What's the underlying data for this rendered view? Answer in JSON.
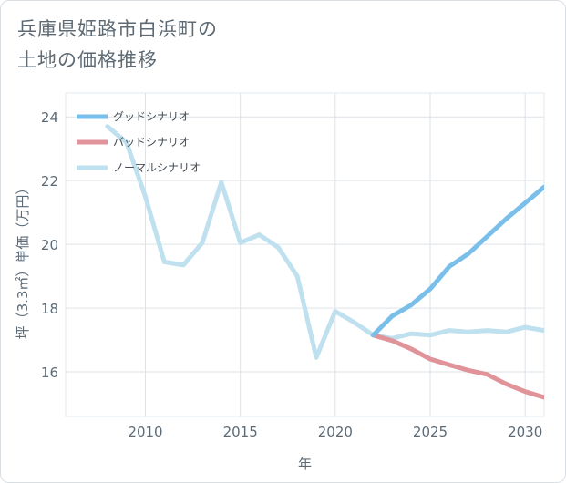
{
  "title": {
    "line1": "兵庫県姫路市白浜町の",
    "line2": "土地の価格推移"
  },
  "chart_data": {
    "type": "line",
    "xlabel": "年",
    "ylabel": "坪（3.3㎡）単価（万円）",
    "xlim": [
      2005.8,
      2031
    ],
    "ylim": [
      14.6,
      24.75
    ],
    "x_ticks": [
      2010,
      2015,
      2020,
      2025,
      2030
    ],
    "y_ticks": [
      16,
      18,
      20,
      22,
      24
    ],
    "grid": true,
    "legend_position": "top-left",
    "series": [
      {
        "name": "グッドシナリオ",
        "color": "#7abfea",
        "x": [
          2022,
          2023,
          2024,
          2025,
          2026,
          2027,
          2028,
          2029,
          2030,
          2031
        ],
        "values": [
          17.15,
          17.75,
          18.1,
          18.6,
          19.3,
          19.7,
          20.25,
          20.8,
          21.3,
          21.8
        ]
      },
      {
        "name": "バッドシナリオ",
        "color": "#e0949a",
        "x": [
          2022,
          2023,
          2024,
          2025,
          2026,
          2027,
          2028,
          2029,
          2030,
          2031
        ],
        "values": [
          17.15,
          16.98,
          16.72,
          16.4,
          16.22,
          16.05,
          15.92,
          15.62,
          15.38,
          15.2
        ]
      },
      {
        "name": "ノーマルシナリオ",
        "color": "#bfe0ee",
        "x": [
          2008,
          2009,
          2010,
          2011,
          2012,
          2013,
          2014,
          2015,
          2016,
          2017,
          2018,
          2019,
          2020,
          2021,
          2022,
          2023,
          2024,
          2025,
          2026,
          2027,
          2028,
          2029,
          2030,
          2031
        ],
        "values": [
          23.7,
          23.2,
          21.5,
          19.45,
          19.35,
          20.05,
          21.95,
          20.05,
          20.3,
          19.9,
          19.0,
          16.45,
          17.9,
          17.55,
          17.15,
          17.05,
          17.2,
          17.15,
          17.3,
          17.25,
          17.3,
          17.25,
          17.4,
          17.3
        ]
      }
    ]
  }
}
